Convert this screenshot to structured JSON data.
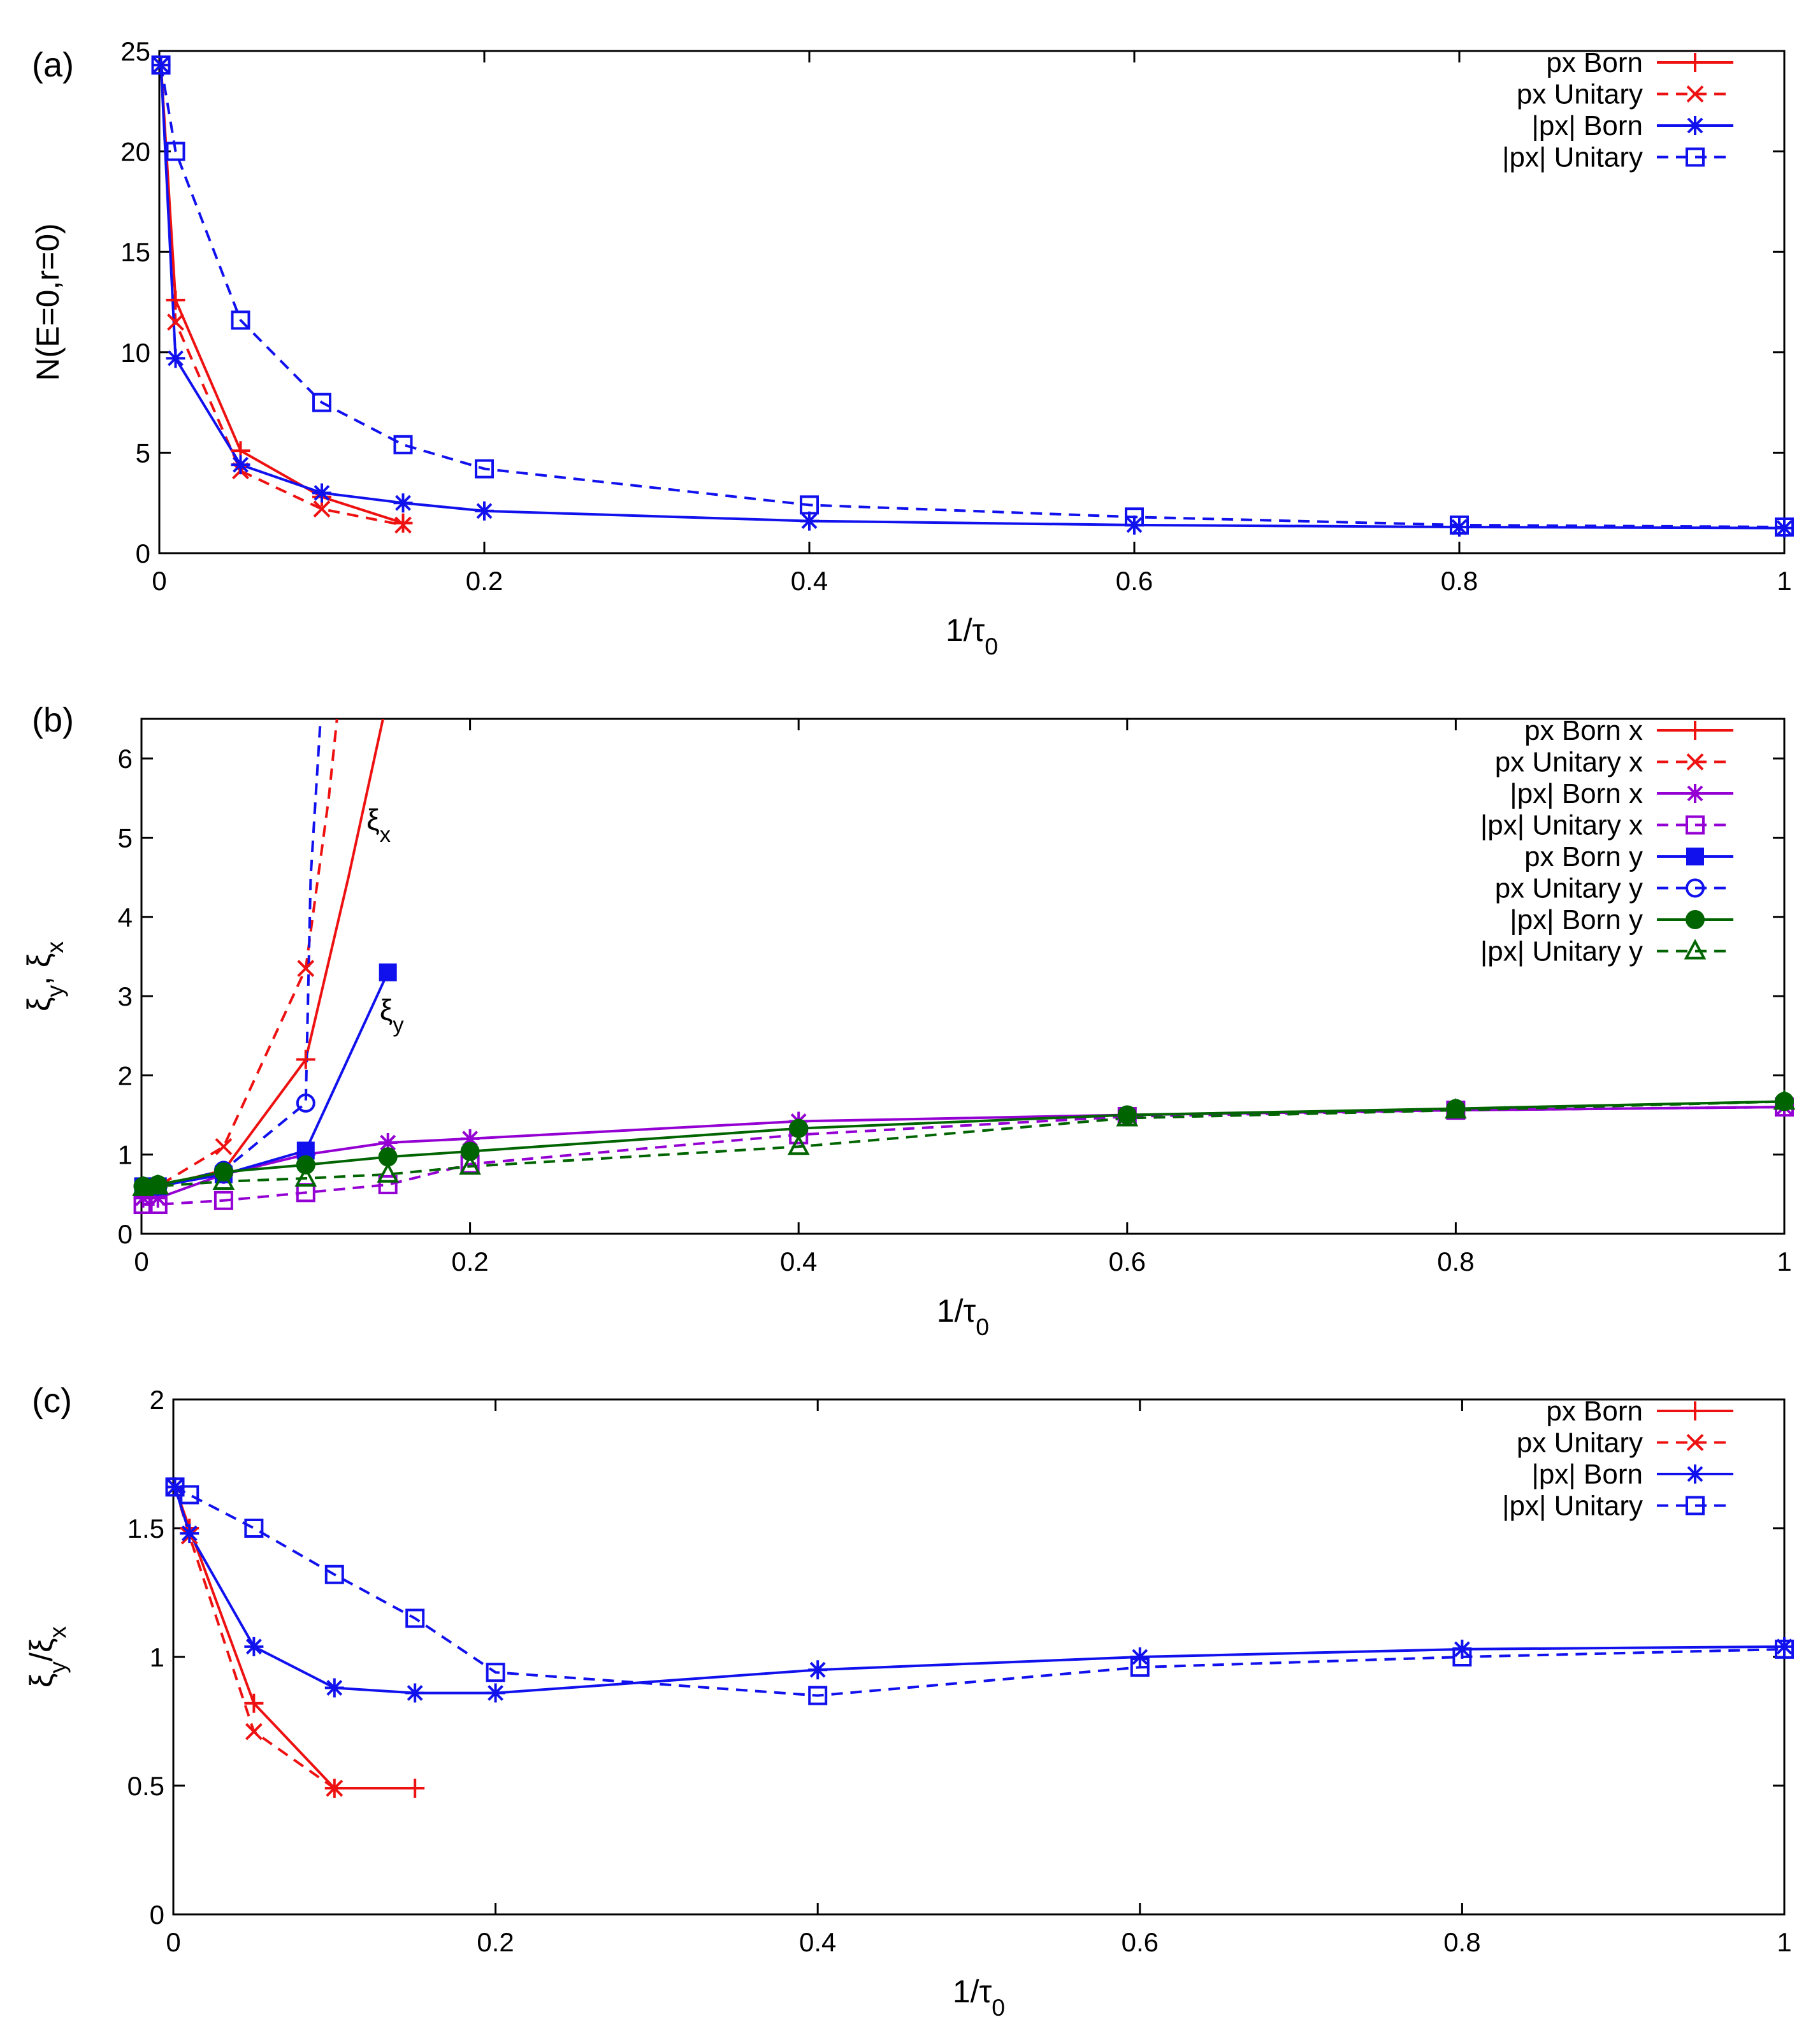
{
  "colors": {
    "red": "#ee1111",
    "blue": "#1111ee",
    "purple": "#9400d3",
    "green": "#006400",
    "axis": "#000000"
  },
  "chart_data": [
    {
      "type": "line",
      "panel_label": "(a)",
      "xlabel": "1/τ0",
      "ylabel": "N(E=0,r=0)",
      "xlim": [
        0,
        1
      ],
      "ylim": [
        0,
        25
      ],
      "xticks": [
        0,
        0.2,
        0.4,
        0.6,
        0.8,
        1
      ],
      "xtick_labels": [
        "0",
        "0.2",
        "0.4",
        "0.6",
        "0.8",
        "1"
      ],
      "yticks": [
        0,
        5,
        10,
        15,
        20,
        25
      ],
      "ytick_labels": [
        "0",
        "5",
        "10",
        "15",
        "20",
        "25"
      ],
      "legend_position": "top-right",
      "series": [
        {
          "name": "px Born",
          "color": "red",
          "dash": false,
          "marker": "plus",
          "x": [
            0.001,
            0.01,
            0.05,
            0.1,
            0.15
          ],
          "y": [
            24.3,
            12.6,
            5.1,
            2.8,
            1.5
          ]
        },
        {
          "name": "px Unitary",
          "color": "red",
          "dash": true,
          "marker": "cross",
          "x": [
            0.001,
            0.01,
            0.05,
            0.1,
            0.15
          ],
          "y": [
            24.3,
            11.5,
            4.1,
            2.2,
            1.4
          ]
        },
        {
          "name": "|px| Born",
          "color": "blue",
          "dash": false,
          "marker": "star",
          "x": [
            0.001,
            0.01,
            0.05,
            0.1,
            0.15,
            0.2,
            0.4,
            0.6,
            0.8,
            1.0
          ],
          "y": [
            24.3,
            9.7,
            4.4,
            3.0,
            2.5,
            2.1,
            1.6,
            1.4,
            1.3,
            1.25
          ]
        },
        {
          "name": "|px| Unitary",
          "color": "blue",
          "dash": true,
          "marker": "square",
          "x": [
            0.001,
            0.01,
            0.05,
            0.1,
            0.15,
            0.2,
            0.4,
            0.6,
            0.8,
            1.0
          ],
          "y": [
            24.3,
            20.0,
            11.6,
            7.5,
            5.4,
            4.2,
            2.4,
            1.8,
            1.4,
            1.3
          ]
        }
      ]
    },
    {
      "type": "line",
      "panel_label": "(b)",
      "xlabel": "1/τ0",
      "ylabel": "ξy, ξx",
      "xlim": [
        0,
        1
      ],
      "ylim": [
        0,
        6.5
      ],
      "xticks": [
        0,
        0.2,
        0.4,
        0.6,
        0.8,
        1
      ],
      "xtick_labels": [
        "0",
        "0.2",
        "0.4",
        "0.6",
        "0.8",
        "1"
      ],
      "yticks": [
        0,
        1,
        2,
        3,
        4,
        5,
        6
      ],
      "ytick_labels": [
        "0",
        "1",
        "2",
        "3",
        "4",
        "5",
        "6"
      ],
      "legend_position": "top-right",
      "annotations": [
        {
          "text": "ξx",
          "x": 0.137,
          "y": 5.1
        },
        {
          "text": "ξy",
          "x": 0.145,
          "y": 2.7
        }
      ],
      "series": [
        {
          "name": "px Born x",
          "color": "red",
          "dash": false,
          "marker": "plus",
          "x": [
            0.001,
            0.01,
            0.05,
            0.1,
            0.126,
            0.147
          ],
          "y": [
            0.6,
            0.6,
            0.8,
            2.2,
            4.5,
            6.5
          ],
          "marker_count": 4
        },
        {
          "name": "px Unitary x",
          "color": "red",
          "dash": true,
          "marker": "cross",
          "x": [
            0.001,
            0.01,
            0.05,
            0.1,
            0.114,
            0.119
          ],
          "y": [
            0.6,
            0.6,
            1.1,
            3.35,
            5.5,
            6.5
          ],
          "marker_count": 4
        },
        {
          "name": "|px| Born x",
          "color": "purple",
          "dash": false,
          "marker": "star",
          "x": [
            0.001,
            0.01,
            0.05,
            0.1,
            0.15,
            0.2,
            0.4,
            0.6,
            0.8,
            1.0
          ],
          "y": [
            0.45,
            0.45,
            0.75,
            1.0,
            1.15,
            1.2,
            1.42,
            1.5,
            1.56,
            1.6
          ]
        },
        {
          "name": "|px| Unitary x",
          "color": "purple",
          "dash": true,
          "marker": "square",
          "x": [
            0.001,
            0.01,
            0.05,
            0.1,
            0.15,
            0.2,
            0.4,
            0.6,
            0.8,
            1.0
          ],
          "y": [
            0.37,
            0.37,
            0.42,
            0.52,
            0.62,
            0.88,
            1.25,
            1.48,
            1.56,
            1.6
          ]
        },
        {
          "name": "px Born y",
          "color": "blue",
          "dash": false,
          "marker": "filled-square",
          "x": [
            0.001,
            0.01,
            0.05,
            0.1,
            0.15
          ],
          "y": [
            0.6,
            0.6,
            0.75,
            1.05,
            3.3
          ]
        },
        {
          "name": "px Unitary y",
          "color": "blue",
          "dash": true,
          "marker": "circle",
          "x": [
            0.001,
            0.01,
            0.05,
            0.1,
            0.103,
            0.109
          ],
          "y": [
            0.6,
            0.6,
            0.8,
            1.65,
            4.5,
            6.5
          ],
          "marker_count": 4
        },
        {
          "name": "|px| Born y",
          "color": "green",
          "dash": false,
          "marker": "filled-circle",
          "x": [
            0.001,
            0.01,
            0.05,
            0.1,
            0.15,
            0.2,
            0.4,
            0.6,
            0.8,
            1.0
          ],
          "y": [
            0.6,
            0.62,
            0.78,
            0.87,
            0.97,
            1.04,
            1.33,
            1.5,
            1.58,
            1.67
          ]
        },
        {
          "name": "|px| Unitary y",
          "color": "green",
          "dash": true,
          "marker": "triangle",
          "x": [
            0.001,
            0.01,
            0.05,
            0.1,
            0.15,
            0.2,
            0.4,
            0.6,
            0.8,
            1.0
          ],
          "y": [
            0.58,
            0.6,
            0.66,
            0.7,
            0.75,
            0.85,
            1.1,
            1.46,
            1.56,
            1.67
          ]
        }
      ]
    },
    {
      "type": "line",
      "panel_label": "(c)",
      "xlabel": "1/τ0",
      "ylabel": "ξy/ξx",
      "xlim": [
        0,
        1
      ],
      "ylim": [
        0,
        2
      ],
      "xticks": [
        0,
        0.2,
        0.4,
        0.6,
        0.8,
        1
      ],
      "xtick_labels": [
        "0",
        "0.2",
        "0.4",
        "0.6",
        "0.8",
        "1"
      ],
      "yticks": [
        0,
        0.5,
        1,
        1.5,
        2
      ],
      "ytick_labels": [
        "0",
        "0.5",
        "1",
        "1.5",
        "2"
      ],
      "legend_position": "top-right",
      "series": [
        {
          "name": "px Born",
          "color": "red",
          "dash": false,
          "marker": "plus",
          "x": [
            0.001,
            0.01,
            0.05,
            0.1,
            0.15
          ],
          "y": [
            1.66,
            1.5,
            0.82,
            0.49,
            0.49
          ]
        },
        {
          "name": "px Unitary",
          "color": "red",
          "dash": true,
          "marker": "cross",
          "x": [
            0.001,
            0.01,
            0.05,
            0.1
          ],
          "y": [
            1.66,
            1.47,
            0.71,
            0.49
          ]
        },
        {
          "name": "|px| Born",
          "color": "blue",
          "dash": false,
          "marker": "star",
          "x": [
            0.001,
            0.01,
            0.05,
            0.1,
            0.15,
            0.2,
            0.4,
            0.6,
            0.8,
            1.0
          ],
          "y": [
            1.66,
            1.48,
            1.04,
            0.88,
            0.86,
            0.86,
            0.95,
            1.0,
            1.03,
            1.04
          ]
        },
        {
          "name": "|px| Unitary",
          "color": "blue",
          "dash": true,
          "marker": "square",
          "x": [
            0.001,
            0.01,
            0.05,
            0.1,
            0.15,
            0.2,
            0.4,
            0.6,
            0.8,
            1.0
          ],
          "y": [
            1.66,
            1.63,
            1.5,
            1.32,
            1.15,
            0.94,
            0.85,
            0.96,
            1.0,
            1.03
          ]
        }
      ]
    }
  ]
}
